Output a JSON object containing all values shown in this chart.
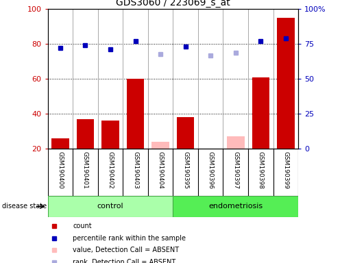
{
  "title": "GDS3060 / 223069_s_at",
  "samples": [
    "GSM190400",
    "GSM190401",
    "GSM190402",
    "GSM190403",
    "GSM190404",
    "GSM190395",
    "GSM190396",
    "GSM190397",
    "GSM190398",
    "GSM190399"
  ],
  "count_values": [
    26,
    37,
    36,
    60,
    null,
    38,
    null,
    null,
    61,
    95
  ],
  "count_absent": [
    null,
    null,
    null,
    null,
    24,
    null,
    20,
    27,
    null,
    null
  ],
  "rank_values": [
    72,
    74,
    71,
    77,
    null,
    73,
    null,
    null,
    77,
    79
  ],
  "rank_absent": [
    null,
    null,
    null,
    null,
    68,
    null,
    67,
    69,
    null,
    null
  ],
  "left_ylim": [
    20,
    100
  ],
  "right_ylim": [
    0,
    100
  ],
  "left_yticks": [
    20,
    40,
    60,
    80,
    100
  ],
  "right_yticks": [
    0,
    25,
    50,
    75,
    100
  ],
  "right_yticklabels": [
    "0",
    "25",
    "50",
    "75",
    "100%"
  ],
  "left_yticklabels": [
    "20",
    "40",
    "60",
    "80",
    "100"
  ],
  "bar_color_present": "#cc0000",
  "bar_color_absent": "#ffbbbb",
  "dot_color_present": "#0000bb",
  "dot_color_absent": "#aaaadd",
  "ctrl_color": "#aaffaa",
  "endo_color": "#55ee55",
  "label_bg_color": "#cccccc",
  "sep_color": "#999999",
  "n_control": 5,
  "n_total": 10
}
